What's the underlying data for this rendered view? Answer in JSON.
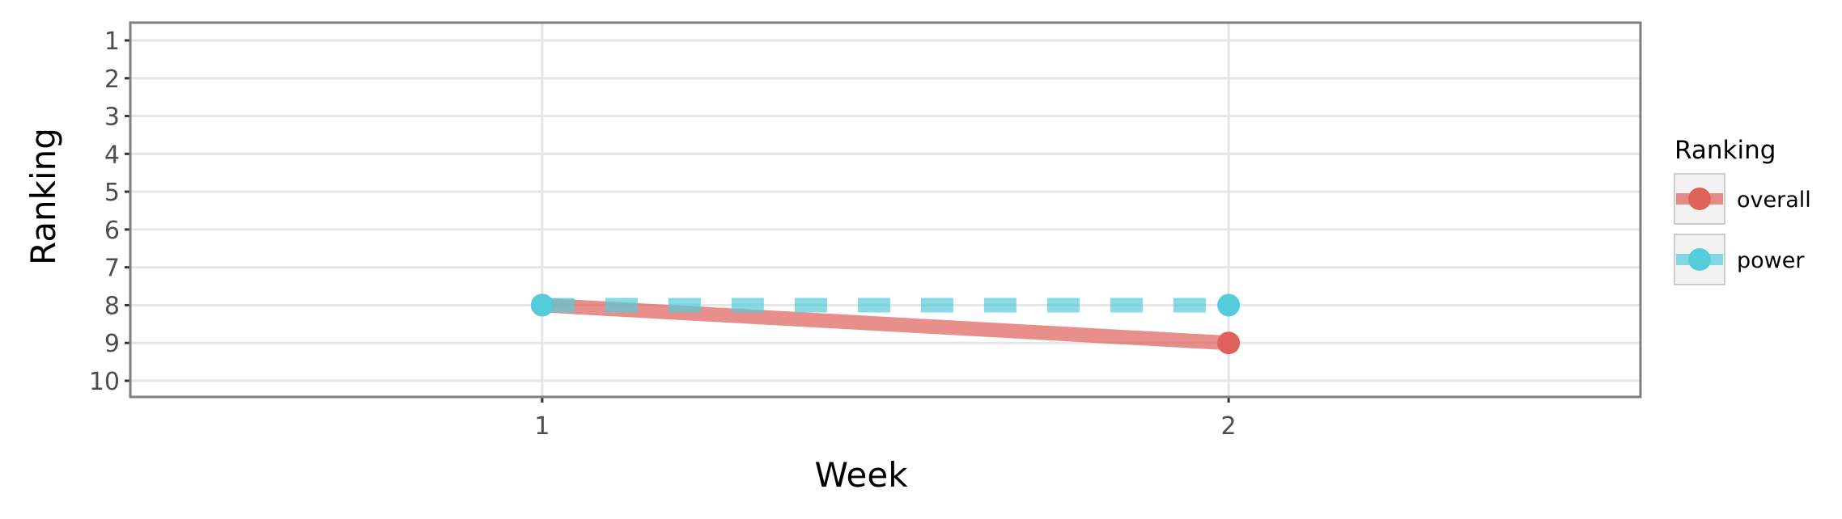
{
  "chart_data": {
    "type": "line",
    "title": "",
    "xlabel": "Week",
    "ylabel": "Ranking",
    "x": [
      1,
      2
    ],
    "x_ticks": [
      "1",
      "2"
    ],
    "y_ticks": [
      "1",
      "2",
      "3",
      "4",
      "5",
      "6",
      "7",
      "8",
      "9",
      "10"
    ],
    "xlim": [
      0.4,
      2.6
    ],
    "ylim": [
      1,
      10
    ],
    "y_reversed": true,
    "grid": true,
    "legend": {
      "title": "Ranking",
      "placement": "right"
    },
    "series": [
      {
        "name": "overall",
        "values": [
          8,
          9
        ],
        "color": "#e0605a",
        "line_style": "solid"
      },
      {
        "name": "power",
        "values": [
          8,
          8
        ],
        "color": "#55ccd9",
        "line_style": "dashed"
      }
    ]
  }
}
